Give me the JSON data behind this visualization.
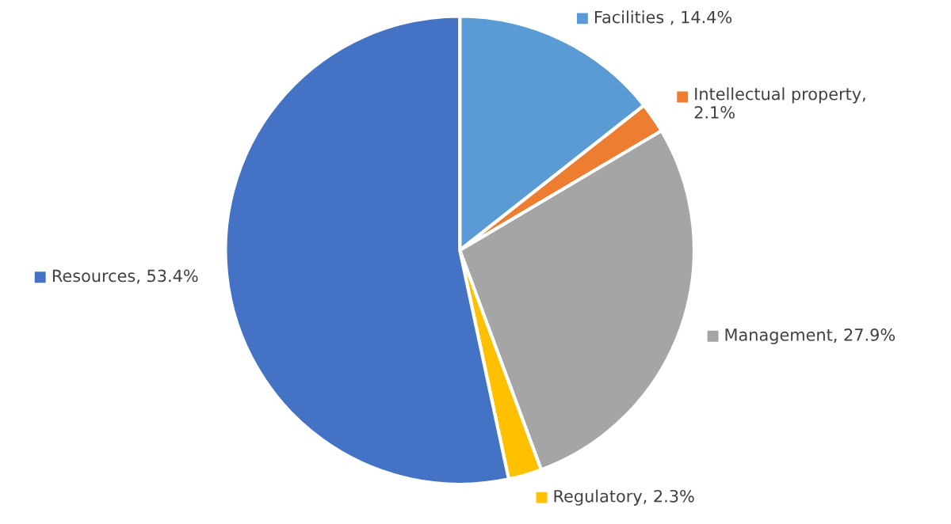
{
  "chart_data": {
    "type": "pie",
    "categories": [
      "Facilities ",
      "Intellectual property",
      "Management",
      "Regulatory",
      "Resources"
    ],
    "values": [
      14.4,
      2.1,
      27.9,
      2.3,
      53.4
    ],
    "colors": [
      "#5b9bd5",
      "#ed7d31",
      "#a5a5a5",
      "#ffc000",
      "#4472c4"
    ],
    "value_labels": [
      ", 14.4%",
      ", 2.1%",
      ", 27.9%",
      ", 2.3%",
      ", 53.4%"
    ],
    "legend": "right"
  }
}
